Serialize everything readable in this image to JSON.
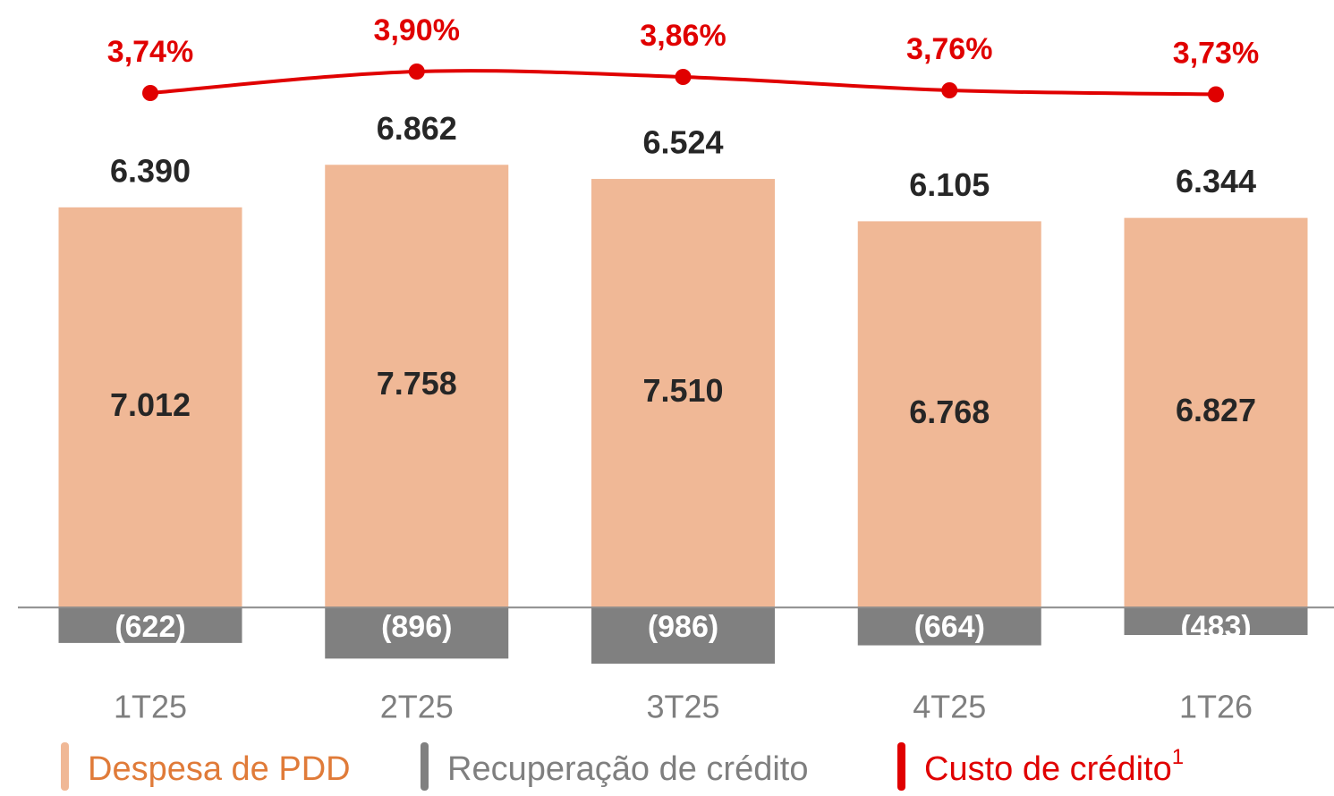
{
  "chart_data": {
    "type": "bar",
    "categories": [
      "1T25",
      "2T25",
      "3T25",
      "4T25",
      "1T26"
    ],
    "ylim": [
      -1000,
      9000
    ],
    "y2lim": [
      3.0,
      4.3
    ],
    "series": [
      {
        "name": "Despesa de PDD",
        "color": "#f0b896",
        "legend_text_color": "#e07b39",
        "values": [
          7012,
          7758,
          7510,
          6768,
          6827
        ],
        "value_labels": [
          "7.012",
          "7.758",
          "7.510",
          "6.768",
          "6.827"
        ]
      },
      {
        "name": "Recuperação de crédito",
        "color": "#808080",
        "legend_text_color": "#7f7f7f",
        "values": [
          -622,
          -896,
          -986,
          -664,
          -483
        ],
        "value_labels": [
          "(622)",
          "(896)",
          "(986)",
          "(664)",
          "(483)"
        ]
      },
      {
        "name": "Custo de crédito",
        "type": "line",
        "axis": "y2",
        "color": "#e00000",
        "legend_text_color": "#e00000",
        "values": [
          3.74,
          3.9,
          3.86,
          3.76,
          3.73
        ],
        "value_labels": [
          "3,74%",
          "3,90%",
          "3,86%",
          "3,76%",
          "3,73%"
        ]
      }
    ],
    "totals": [
      6390,
      6862,
      6524,
      6105,
      6344
    ],
    "total_labels": [
      "6.390",
      "6.862",
      "6.524",
      "6.105",
      "6.344"
    ],
    "legend_footnote": "1"
  }
}
